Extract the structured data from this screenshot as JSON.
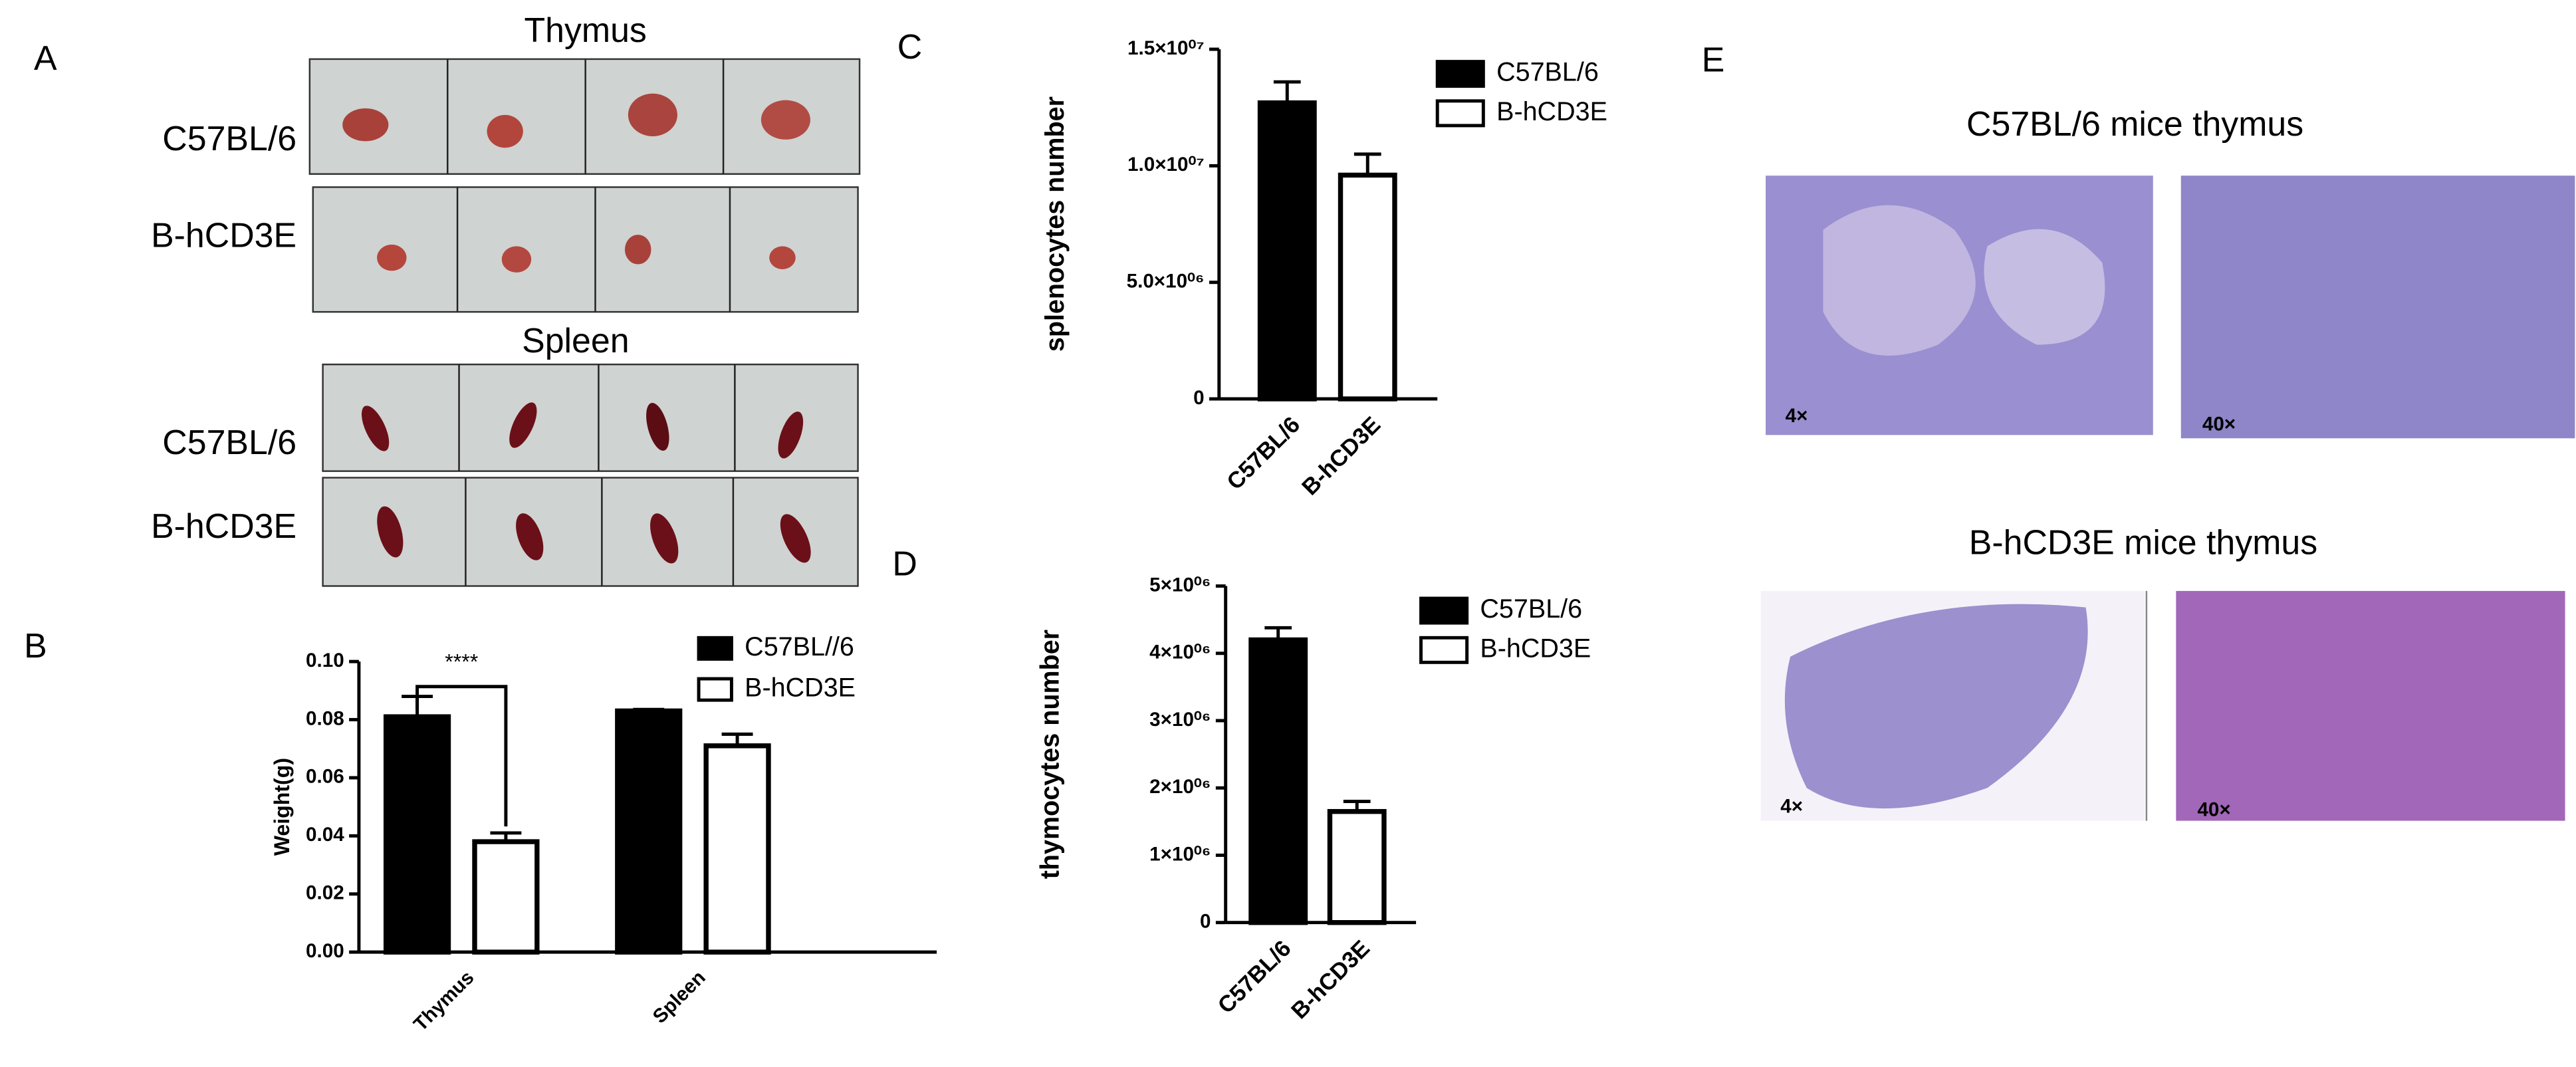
{
  "panels": {
    "a": "A",
    "b": "B",
    "c": "C",
    "d": "D",
    "e": "E"
  },
  "panel_a": {
    "thymus_title": "Thymus",
    "spleen_title": "Spleen",
    "thymus_rows": [
      "C57BL/6",
      "B-hCD3E"
    ],
    "spleen_rows": [
      "C57BL/6",
      "B-hCD3E"
    ]
  },
  "panel_e": {
    "titles": [
      "C57BL/6 mice thymus",
      "B-hCD3E mice thymus"
    ],
    "magnifications": [
      "4×",
      "40×",
      "4×",
      "40×"
    ]
  },
  "chart_data": [
    {
      "type": "grouped_bar",
      "ylabel": "Weight(g)",
      "categories": [
        "Thymus",
        "Spleen"
      ],
      "series": [
        {
          "name": "C57BL//6",
          "color": "#000000",
          "values": [
            0.081,
            0.083
          ],
          "errors": [
            0.007,
            0.0005
          ]
        },
        {
          "name": "B-hCD3E",
          "color": "#ffffff",
          "values": [
            0.038,
            0.071
          ],
          "errors": [
            0.003,
            0.004
          ]
        }
      ],
      "ylim": [
        0,
        0.1
      ],
      "yticks": [
        {
          "value": 0,
          "label": "0.00"
        },
        {
          "value": 0.02,
          "label": "0.02"
        },
        {
          "value": 0.04,
          "label": "0.04"
        },
        {
          "value": 0.06,
          "label": "0.06"
        },
        {
          "value": 0.08,
          "label": "0.08"
        },
        {
          "value": 0.1,
          "label": "0.10"
        }
      ],
      "significance": "****"
    },
    {
      "type": "bar",
      "ylabel": "splenocytes number",
      "categories": [
        "C57BL/6",
        "B-hCD3E"
      ],
      "values": [
        12700000,
        9600000
      ],
      "errors": [
        900000,
        900000
      ],
      "colors": [
        "#000000",
        "#ffffff"
      ],
      "ylim": [
        0,
        15000000
      ],
      "yticks": [
        0,
        {
          "value": 5000000,
          "label": "5.0×10⁰⁶"
        },
        {
          "value": 10000000,
          "label": "1.0×10⁰⁷"
        },
        {
          "value": 15000000,
          "label": "1.5×10⁰⁷"
        }
      ]
    },
    {
      "type": "bar",
      "ylabel": "thymocytes number",
      "categories": [
        "C57BL/6",
        "B-hCD3E"
      ],
      "values": [
        4200000,
        1650000
      ],
      "errors": [
        180000,
        150000
      ],
      "colors": [
        "#000000",
        "#ffffff"
      ],
      "ylim": [
        0,
        5000000
      ],
      "yticks": [
        0,
        {
          "value": 1000000,
          "label": "1×10⁰⁶"
        },
        {
          "value": 2000000,
          "label": "2×10⁰⁶"
        },
        {
          "value": 3000000,
          "label": "3×10⁰⁶"
        },
        {
          "value": 4000000,
          "label": "4×10⁰⁶"
        },
        {
          "value": 5000000,
          "label": "5×10⁰⁶"
        }
      ]
    }
  ]
}
